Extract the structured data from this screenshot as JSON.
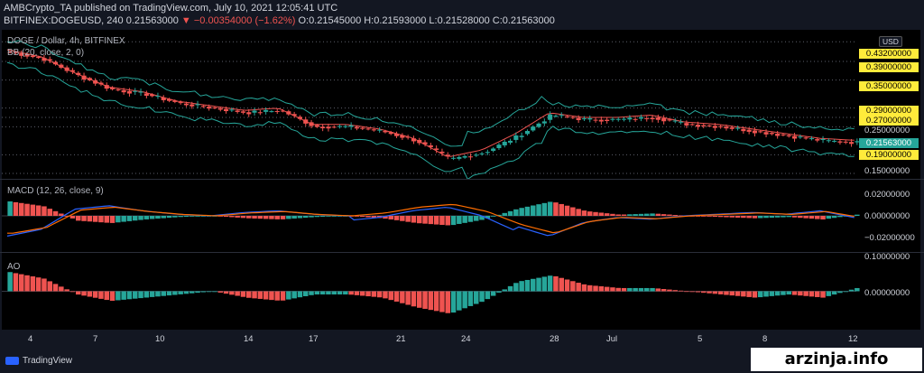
{
  "header": {
    "line1": "AMBCrypto_TA published on TradingView.com, July 10, 2021 12:05:41 UTC",
    "symbol": "BITFINEX:DOGEUSD, 240",
    "last": "0.21563000",
    "change": "▼ −0.00354000 (−1.62%)",
    "ohlc": "O:0.21545000 H:0.21593000 L:0.21528000 C:0.21563000"
  },
  "price_panel": {
    "title": "DOGE / Dollar, 4h, BITFINEX",
    "indicator": "BB (20, close, 2, 0)",
    "currency": "USD",
    "axis_labels": [
      "0.15000000",
      "0.25000000"
    ],
    "tags": [
      "0.43200000",
      "0.39000000",
      "0.35000000",
      "0.29000000",
      "0.27000000",
      "0.19000000"
    ],
    "current_tag": "0.21563000"
  },
  "macd_panel": {
    "title": "MACD (12, 26, close, 9)",
    "axis_labels": [
      "0.02000000",
      "0.00000000",
      "−0.02000000"
    ]
  },
  "ao_panel": {
    "title": "AO",
    "axis_labels": [
      "0.10000000",
      "0.00000000"
    ]
  },
  "x_axis": {
    "labels": [
      "4",
      "7",
      "10",
      "14",
      "17",
      "21",
      "24",
      "28",
      "Jul",
      "5",
      "8",
      "12"
    ]
  },
  "footer": {
    "brand": "TradingView",
    "watermark": "arzinja.info"
  },
  "colors": {
    "up": "#26a69a",
    "down": "#ef5350",
    "bb": "#26a69a",
    "basis": "#ef5350",
    "macd": "#2962ff",
    "signal": "#ff6d00",
    "tag": "#ffeb3b"
  },
  "chart_data": [
    {
      "type": "candlestick",
      "title": "DOGE / Dollar, 4h, BITFINEX",
      "x": [
        "4",
        "7",
        "10",
        "14",
        "17",
        "21",
        "24",
        "28",
        "Jul",
        "5",
        "8",
        "12"
      ],
      "close_approx": [
        0.41,
        0.395,
        0.36,
        0.33,
        0.32,
        0.3,
        0.29,
        0.28,
        0.285,
        0.25,
        0.25,
        0.24,
        0.22,
        0.18,
        0.195,
        0.23,
        0.275,
        0.265,
        0.265,
        0.27,
        0.255,
        0.25,
        0.24,
        0.23,
        0.22,
        0.216
      ],
      "ylim": [
        0.15,
        0.45
      ]
    },
    {
      "type": "bar",
      "title": "MACD (12, 26, close, 9)",
      "values_approx": [
        0.012,
        0.008,
        -0.004,
        -0.006,
        -0.003,
        -0.001,
        0.0,
        -0.002,
        -0.003,
        -0.001,
        0.0,
        -0.002,
        -0.006,
        -0.008,
        -0.003,
        0.006,
        0.012,
        0.004,
        0.001,
        0.002,
        0.0,
        -0.001,
        -0.002,
        -0.001,
        -0.003,
        0.001
      ],
      "ylim": [
        -0.03,
        0.03
      ]
    },
    {
      "type": "bar",
      "title": "AO",
      "values_approx": [
        0.06,
        0.04,
        -0.01,
        -0.03,
        -0.02,
        -0.01,
        0.0,
        -0.02,
        -0.03,
        -0.01,
        -0.01,
        -0.02,
        -0.05,
        -0.07,
        -0.03,
        0.03,
        0.05,
        0.02,
        0.01,
        0.01,
        0.0,
        -0.01,
        -0.02,
        -0.01,
        -0.02,
        0.01
      ],
      "ylim": [
        -0.12,
        0.12
      ]
    }
  ]
}
